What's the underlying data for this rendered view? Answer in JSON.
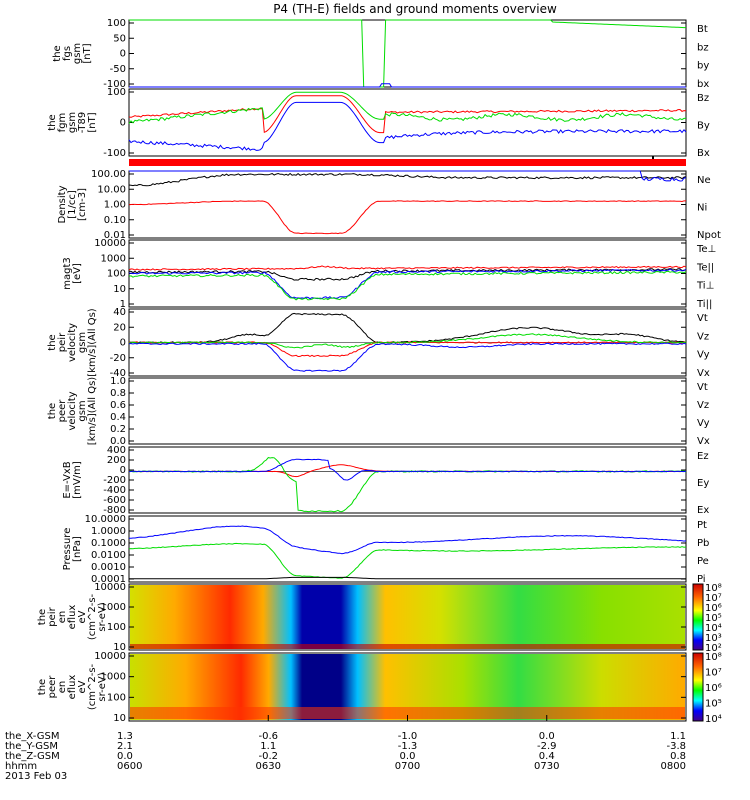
{
  "title": "P4 (TH-E) fields and ground moments overview",
  "colors": {
    "black": "#000000",
    "red": "#ff0000",
    "green": "#00dd00",
    "blue": "#0000ff",
    "bar": "#ff0000"
  },
  "panels": [
    {
      "id": "fgs",
      "ylabel": [
        "the",
        "fgs",
        "gsm",
        "[nT]"
      ],
      "ticks": [
        "100",
        "50",
        "0",
        "-50",
        "-100"
      ],
      "legend": [
        {
          "text": "Bt",
          "color": "#000000"
        },
        {
          "text": "bz",
          "color": "#ff0000"
        },
        {
          "text": "by",
          "color": "#00dd00"
        },
        {
          "text": "bx",
          "color": "#0000ff"
        }
      ]
    },
    {
      "id": "fgm",
      "ylabel": [
        "the",
        "fgm",
        "gsm",
        "-T89",
        "[nT]"
      ],
      "ticks": [
        "100",
        "0",
        "-100"
      ],
      "legend": [
        {
          "text": "Bz",
          "color": "#ff0000"
        },
        {
          "text": "By",
          "color": "#00dd00"
        },
        {
          "text": "Bx",
          "color": "#0000ff"
        }
      ]
    },
    {
      "id": "density",
      "ylabel": [
        "Density",
        "[1/cc]",
        "[cm-3]"
      ],
      "ticks": [
        "100.00",
        "10.00",
        "1.00",
        "0.10",
        "0.01"
      ],
      "legend": [
        {
          "text": "Ne",
          "color": "#ff0000"
        },
        {
          "text": "Ni",
          "color": "#000000"
        },
        {
          "text": "Npot",
          "color": "#0000ff"
        }
      ]
    },
    {
      "id": "temp",
      "ylabel": [
        "magt3",
        "[eV]"
      ],
      "ticks": [
        "10000",
        "1000",
        "100",
        "10",
        "1"
      ],
      "legend": [
        {
          "text": "Te⊥",
          "color": "#ff0000"
        },
        {
          "text": "Te||",
          "color": "#000000"
        },
        {
          "text": "Ti⊥",
          "color": "#0000ff"
        },
        {
          "text": "Ti||",
          "color": "#00dd00"
        }
      ]
    },
    {
      "id": "peir",
      "ylabel": [
        "the",
        "peir",
        "velocity",
        "gsm",
        "[km/s](All Qs)"
      ],
      "ticks": [
        "40",
        "20",
        "0",
        "-20",
        "-40"
      ],
      "legend": [
        {
          "text": "Vt",
          "color": "#000000"
        },
        {
          "text": "Vz",
          "color": "#ff0000"
        },
        {
          "text": "Vy",
          "color": "#00dd00"
        },
        {
          "text": "Vx",
          "color": "#0000ff"
        }
      ]
    },
    {
      "id": "peer",
      "ylabel": [
        "the",
        "peer",
        "velocity",
        "gsm",
        "[km/s](All Qs)"
      ],
      "ticks": [
        "1.0",
        "0.8",
        "0.6",
        "0.4",
        "0.2",
        "0.0"
      ],
      "legend": [
        {
          "text": "Vt",
          "color": "#000000"
        },
        {
          "text": "Vz",
          "color": "#ff0000"
        },
        {
          "text": "Vy",
          "color": "#00dd00"
        },
        {
          "text": "Vx",
          "color": "#0000ff"
        }
      ]
    },
    {
      "id": "efield",
      "ylabel": [
        "E=-VxB",
        "[mV/m]"
      ],
      "ticks": [
        "400",
        "200",
        "0",
        "-200",
        "-400",
        "-600",
        "-800"
      ],
      "legend": [
        {
          "text": "Ez",
          "color": "#ff0000"
        },
        {
          "text": "Ey",
          "color": "#00dd00"
        },
        {
          "text": "Ex",
          "color": "#0000ff"
        }
      ]
    },
    {
      "id": "pressure",
      "ylabel": [
        "Pressure",
        "[nPa]"
      ],
      "ticks": [
        "10.0000",
        "1.0000",
        "0.1000",
        "0.0100",
        "0.0010",
        "0.0001"
      ],
      "legend": [
        {
          "text": "Pt",
          "color": "#000000"
        },
        {
          "text": "Pb",
          "color": "#ff0000"
        },
        {
          "text": "Pe",
          "color": "#00dd00"
        },
        {
          "text": "Pi",
          "color": "#0000ff"
        }
      ]
    },
    {
      "id": "ion_spec",
      "ylabel": [
        "the",
        "peir",
        "en",
        "eflux",
        "eV",
        "(cm^2-s-",
        "sr-eV)"
      ],
      "ticks": [
        "10000",
        "1000",
        "100",
        "10"
      ],
      "colorbar": [
        "10⁸",
        "10⁷",
        "10⁶",
        "10⁵",
        "10⁴",
        "10³",
        "10²"
      ]
    },
    {
      "id": "elec_spec",
      "ylabel": [
        "the",
        "peer",
        "en",
        "eflux",
        "eV",
        "(cm^2-s-",
        "sr-eV)"
      ],
      "ticks": [
        "10000",
        "1000",
        "100",
        "10"
      ],
      "colorbar": [
        "10⁸",
        "10⁷",
        "10⁶",
        "10⁵",
        "10⁴"
      ]
    }
  ],
  "bottom": {
    "rows": [
      {
        "label": "the_X-GSM",
        "values": [
          "1.3",
          "-0.6",
          "-1.0",
          "0.0",
          "1.1"
        ]
      },
      {
        "label": "the_Y-GSM",
        "values": [
          "2.1",
          "1.1",
          "-1.3",
          "-2.9",
          "-3.8"
        ]
      },
      {
        "label": "the_Z-GSM",
        "values": [
          "0.0",
          "-0.2",
          "0.0",
          "0.4",
          "0.8"
        ]
      },
      {
        "label": "hhmm",
        "values": [
          "0600",
          "0630",
          "0700",
          "0730",
          "0800"
        ]
      }
    ],
    "date": "2013 Feb 03"
  }
}
